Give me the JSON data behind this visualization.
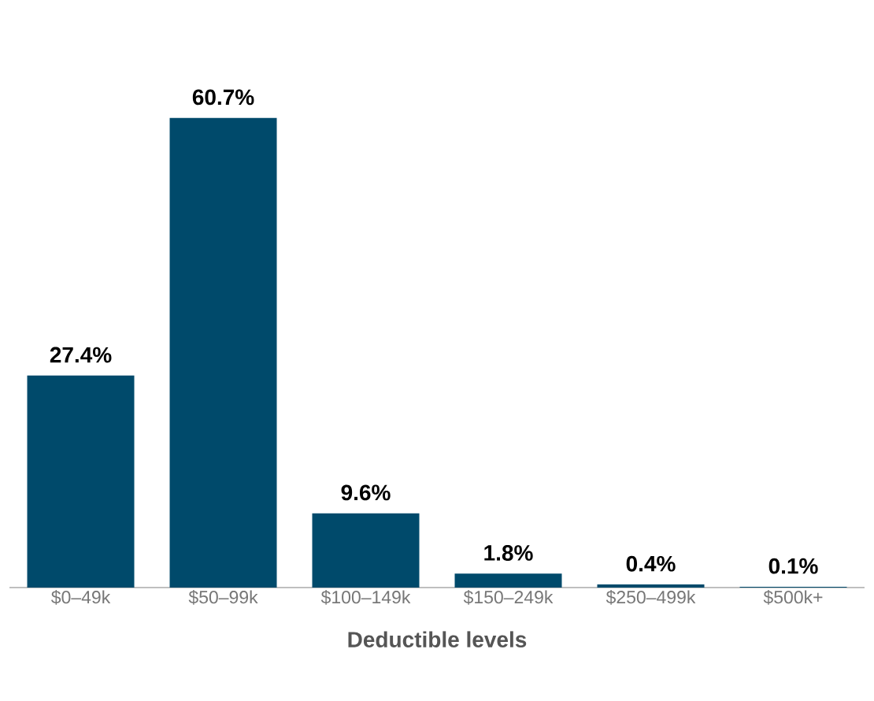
{
  "chart_data": {
    "type": "bar",
    "xlabel": "Deductible levels",
    "categories": [
      "$0–49k",
      "$50–99k",
      "$100–149k",
      "$150–249k",
      "$250–499k",
      "$500k+"
    ],
    "values": [
      27.4,
      60.7,
      9.6,
      1.8,
      0.4,
      0.1
    ],
    "value_labels": [
      "27.4%",
      "60.7%",
      "9.6%",
      "1.8%",
      "0.4%",
      "0.1%"
    ],
    "color": "#004a6b"
  }
}
